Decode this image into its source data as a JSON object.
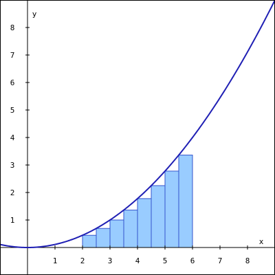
{
  "chart_data": {
    "type": "area",
    "title": "",
    "xlabel": "x",
    "ylabel": "y",
    "xlim": [
      -1,
      9
    ],
    "ylim": [
      -1,
      9
    ],
    "x_ticks": [
      "1",
      "2",
      "3",
      "4",
      "5",
      "6",
      "7",
      "8"
    ],
    "y_ticks": [
      "1",
      "2",
      "3",
      "4",
      "5",
      "6",
      "7",
      "8"
    ],
    "series": [
      {
        "kind": "curve",
        "function": "y = x^2 / 9",
        "color": "#1f1fb4"
      },
      {
        "kind": "rectangles",
        "x_start": [
          2,
          2.5,
          3,
          3.5,
          4,
          4.5,
          5,
          5.5
        ],
        "width": 0.5,
        "heights": [
          0.444,
          0.694,
          1.0,
          1.361,
          1.778,
          2.25,
          2.778,
          3.361
        ],
        "fill": "#99ccff",
        "stroke": "#3355cc"
      }
    ],
    "grid": false,
    "legend": "none"
  }
}
